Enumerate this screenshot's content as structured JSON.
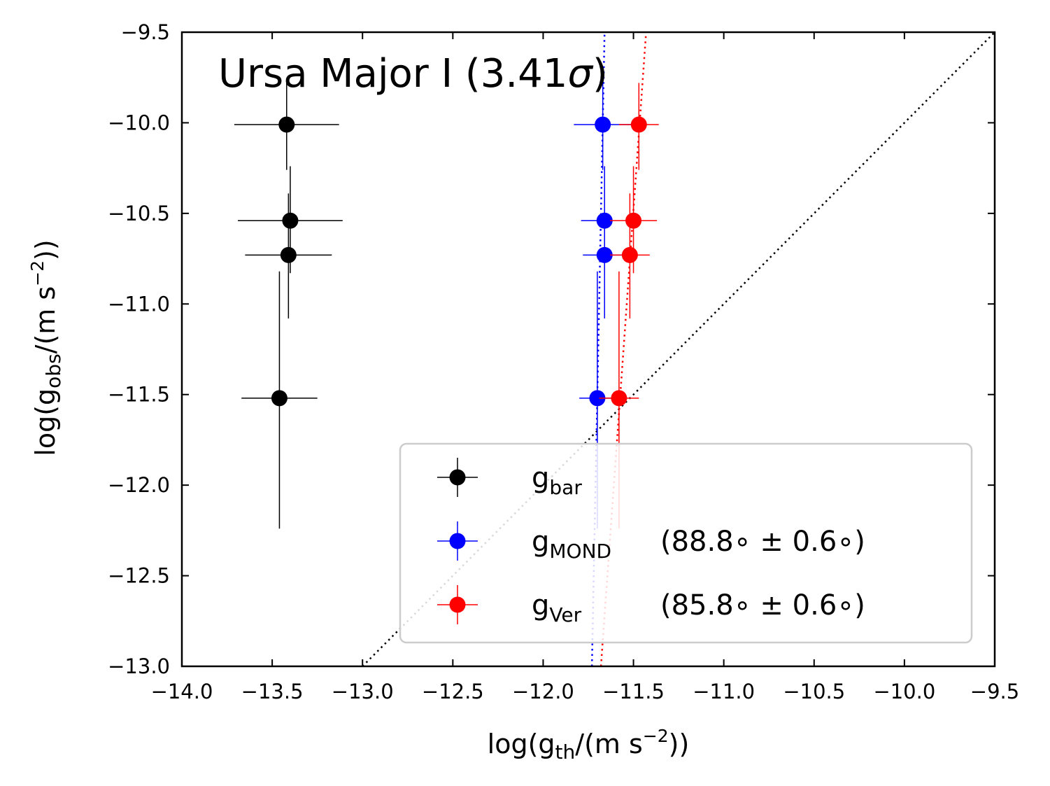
{
  "chart_data": {
    "type": "scatter",
    "title": "Ursa Major I (3.41",
    "title_symbol": "σ",
    "title_close": ")",
    "xlabel": {
      "pre": "log(g",
      "sub": "th",
      "mid": "/(m s",
      "sup": "−2",
      "post": "))"
    },
    "ylabel": {
      "pre": "log(g",
      "sub": "obs",
      "mid": "/(m s",
      "sup": "−2",
      "post": "))"
    },
    "xlim": [
      -14.0,
      -9.5
    ],
    "ylim": [
      -13.0,
      -9.5
    ],
    "xticks": [
      -14.0,
      -13.5,
      -13.0,
      -12.5,
      -12.0,
      -11.5,
      -11.0,
      -10.5,
      -10.0,
      -9.5
    ],
    "xtick_labels": [
      "−14.0",
      "−13.5",
      "−13.0",
      "−12.5",
      "−12.0",
      "−11.5",
      "−11.0",
      "−10.5",
      "−10.0",
      "−9.5"
    ],
    "yticks": [
      -9.5,
      -10.0,
      -10.5,
      -11.0,
      -11.5,
      -12.0,
      -12.5,
      -13.0
    ],
    "ytick_labels": [
      "−9.5",
      "−10.0",
      "−10.5",
      "−11.0",
      "−11.5",
      "−12.0",
      "−12.5",
      "−13.0"
    ],
    "legend_position": "lower-right",
    "one_to_one_line": true,
    "series": [
      {
        "name": "bar",
        "label_base": "g",
        "label_sub": "bar",
        "label_extra": "",
        "color": "#000000",
        "x": [
          -13.42,
          -13.4,
          -13.41,
          -13.46
        ],
        "y": [
          -10.01,
          -10.54,
          -10.73,
          -11.52
        ],
        "xerr": [
          0.29,
          0.29,
          0.24,
          0.21
        ],
        "yerr_lower": [
          0.25,
          0.29,
          0.35,
          0.72
        ],
        "yerr_upper": [
          0.23,
          0.3,
          0.34,
          0.7
        ],
        "fit_line": null
      },
      {
        "name": "MOND",
        "label_base": "g",
        "label_sub": "MOND",
        "label_extra": "(88.8∘ ± 0.6∘)",
        "color": "#0000ff",
        "x": [
          -11.67,
          -11.66,
          -11.66,
          -11.7
        ],
        "y": [
          -10.01,
          -10.54,
          -10.73,
          -11.52
        ],
        "xerr": [
          0.16,
          0.13,
          0.12,
          0.1
        ],
        "yerr_lower": [
          0.25,
          0.29,
          0.35,
          0.72
        ],
        "yerr_upper": [
          0.23,
          0.3,
          0.34,
          0.7
        ],
        "fit_line": {
          "x": [
            -11.73,
            -11.66
          ],
          "y": [
            -13.0,
            -9.5
          ]
        }
      },
      {
        "name": "Ver",
        "label_base": "g",
        "label_sub": "Ver",
        "label_extra": "(85.8∘ ± 0.6∘)",
        "color": "#ff0000",
        "x": [
          -11.47,
          -11.5,
          -11.52,
          -11.58
        ],
        "y": [
          -10.01,
          -10.54,
          -10.73,
          -11.52
        ],
        "xerr": [
          0.11,
          0.13,
          0.11,
          0.11
        ],
        "yerr_lower": [
          0.25,
          0.29,
          0.35,
          0.72
        ],
        "yerr_upper": [
          0.23,
          0.3,
          0.34,
          0.7
        ],
        "fit_line": {
          "x": [
            -11.68,
            -11.43
          ],
          "y": [
            -13.0,
            -9.5
          ]
        }
      }
    ]
  }
}
